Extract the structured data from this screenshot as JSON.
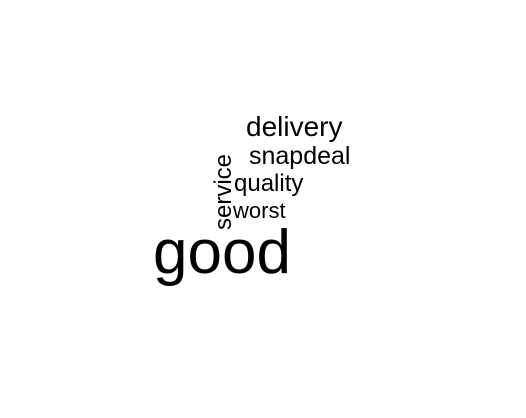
{
  "words": {
    "good": "good",
    "delivery": "delivery",
    "snapdeal": "snapdeal",
    "quality": "quality",
    "worst": "worst",
    "service": "service"
  },
  "colors": {
    "text": "#000000",
    "background": "#ffffff"
  }
}
